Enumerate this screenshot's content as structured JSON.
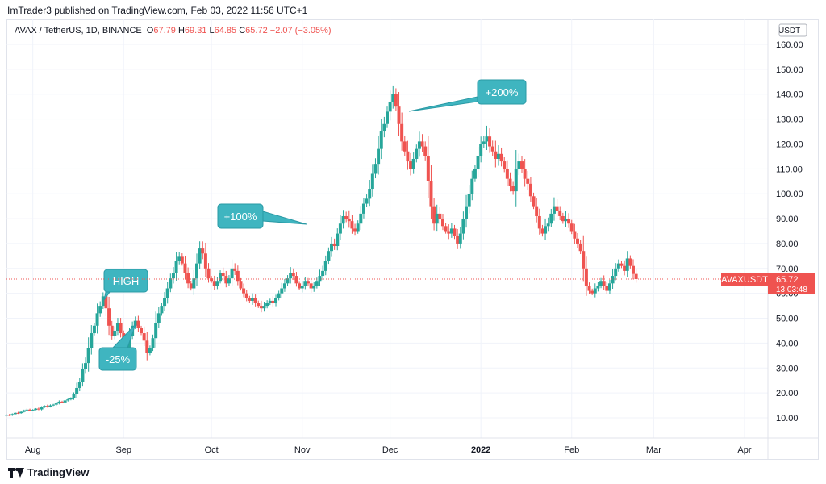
{
  "header": {
    "publisher_line": "ImTrader3 published on TradingView.com, Feb 03, 2022 11:56 UTC+1"
  },
  "legend": {
    "symbol": "AVAX / TetherUS, 1D, BINANCE",
    "open_label": "O",
    "open": "67.79",
    "high_label": "H",
    "high": "69.31",
    "low_label": "L",
    "low": "64.85",
    "close_label": "C",
    "close": "65.72",
    "change": "−2.07 (−3.05%)"
  },
  "price_axis": {
    "currency": "USDT",
    "ticks": [
      "10.00",
      "20.00",
      "30.00",
      "40.00",
      "50.00",
      "60.00",
      "70.00",
      "80.00",
      "90.00",
      "100.00",
      "110.00",
      "120.00",
      "130.00",
      "140.00",
      "150.00",
      "160.00"
    ]
  },
  "time_axis": {
    "ticks": [
      "Aug",
      "Sep",
      "Oct",
      "Nov",
      "Dec",
      "2022",
      "Feb",
      "Mar",
      "Apr"
    ]
  },
  "price_marker": {
    "symbol": "AVAXUSDT",
    "price": "65.72",
    "countdown": "13:03:48"
  },
  "annotations": [
    {
      "text": "HIGH"
    },
    {
      "text": "-25%"
    },
    {
      "text": "+100%"
    },
    {
      "text": "+200%"
    }
  ],
  "footer": {
    "brand": "TradingView"
  },
  "colors": {
    "up": "#26a69a",
    "down": "#ef5350",
    "callout": "#3fb5c0",
    "callout_border": "#2a9aa5"
  },
  "chart_data": {
    "type": "candlestick",
    "title": "AVAX / TetherUS, 1D, BINANCE",
    "ylabel": "USDT",
    "ylim": [
      0,
      163
    ],
    "xlim": [
      "2021-07-23",
      "2022-04-09"
    ],
    "last_price": 65.72,
    "closes": [
      11.2,
      11.0,
      11.5,
      12.0,
      11.9,
      12.4,
      13.0,
      13.3,
      12.9,
      13.2,
      13.7,
      13.4,
      14.2,
      14.8,
      14.5,
      15.0,
      15.3,
      15.8,
      16.5,
      16.2,
      17.0,
      17.4,
      17.8,
      19.5,
      22.0,
      24.5,
      29.5,
      32.0,
      38.0,
      44.0,
      47.0,
      52.0,
      55.0,
      58.8,
      54.0,
      47.0,
      43.0,
      45.0,
      48.0,
      44.0,
      41.0,
      38.0,
      43.0,
      47.0,
      49.0,
      46.0,
      44.0,
      41.0,
      36.0,
      38.0,
      42.0,
      48.0,
      52.0,
      55.0,
      58.0,
      62.0,
      66.0,
      68.0,
      73.0,
      75.0,
      72.0,
      68.0,
      64.0,
      62.0,
      66.0,
      72.0,
      78.0,
      76.0,
      70.0,
      66.0,
      65.0,
      63.0,
      65.0,
      68.0,
      67.0,
      64.0,
      66.0,
      70.0,
      69.0,
      65.0,
      62.0,
      60.0,
      58.0,
      57.0,
      58.0,
      56.0,
      55.0,
      54.0,
      55.0,
      56.0,
      57.0,
      56.0,
      58.0,
      60.0,
      62.0,
      64.0,
      66.0,
      68.0,
      67.0,
      64.0,
      62.0,
      63.0,
      65.0,
      64.0,
      62.0,
      63.0,
      65.0,
      67.0,
      69.0,
      73.0,
      77.0,
      80.0,
      79.0,
      84.0,
      88.0,
      91.0,
      90.0,
      89.0,
      86.0,
      85.0,
      88.0,
      92.0,
      96.0,
      98.0,
      102.0,
      108.0,
      112.0,
      118.0,
      125.0,
      128.0,
      133.0,
      137.0,
      140.0,
      135.0,
      128.0,
      121.0,
      117.0,
      113.0,
      110.0,
      114.0,
      118.0,
      121.0,
      119.0,
      115.0,
      105.0,
      95.0,
      88.0,
      92.0,
      90.0,
      87.0,
      85.0,
      84.0,
      86.0,
      83.0,
      80.0,
      84.0,
      90.0,
      95.0,
      100.0,
      106.0,
      110.0,
      115.0,
      120.0,
      121.0,
      123.0,
      119.0,
      117.0,
      114.0,
      116.0,
      113.0,
      110.0,
      106.0,
      103.0,
      101.0,
      110.0,
      113.0,
      110.0,
      106.0,
      104.0,
      99.0,
      95.0,
      91.0,
      86.0,
      84.0,
      87.0,
      88.0,
      92.0,
      95.0,
      93.0,
      91.0,
      89.0,
      90.0,
      88.0,
      85.0,
      82.0,
      80.0,
      77.0,
      70.0,
      63.0,
      61.0,
      60.0,
      62.0,
      63.0,
      65.0,
      63.0,
      61.0,
      64.0,
      67.0,
      70.0,
      72.0,
      71.0,
      69.0,
      74.0,
      71.0,
      67.79,
      65.72
    ]
  }
}
